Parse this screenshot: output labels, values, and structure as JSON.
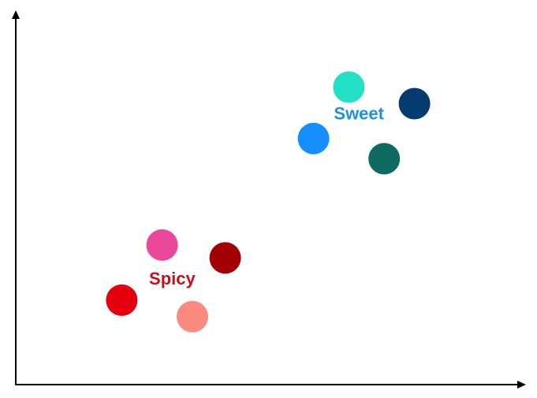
{
  "chart_data": {
    "type": "scatter",
    "title": "",
    "xlabel": "",
    "ylabel": "",
    "xlim": [
      0,
      100
    ],
    "ylim": [
      0,
      100
    ],
    "grid": false,
    "legend": "none",
    "axis_color": "#000000",
    "clusters": [
      {
        "label": "Sweet",
        "label_color": "#1E90E8",
        "label_x": 68,
        "label_y": 73.5,
        "points": [
          {
            "x": 66,
            "y": 81,
            "color": "#22E0C3"
          },
          {
            "x": 79,
            "y": 76.5,
            "color": "#053B6E"
          },
          {
            "x": 59,
            "y": 67,
            "color": "#168EFF"
          },
          {
            "x": 73,
            "y": 61.5,
            "color": "#0F6A62"
          }
        ]
      },
      {
        "label": "Spicy",
        "label_color": "#C8101A",
        "label_x": 31,
        "label_y": 28.5,
        "points": [
          {
            "x": 29,
            "y": 38,
            "color": "#E8479A"
          },
          {
            "x": 41.5,
            "y": 34.5,
            "color": "#A30006"
          },
          {
            "x": 21,
            "y": 23,
            "color": "#E4000F"
          },
          {
            "x": 35,
            "y": 18.5,
            "color": "#FA8A80"
          }
        ]
      }
    ]
  }
}
